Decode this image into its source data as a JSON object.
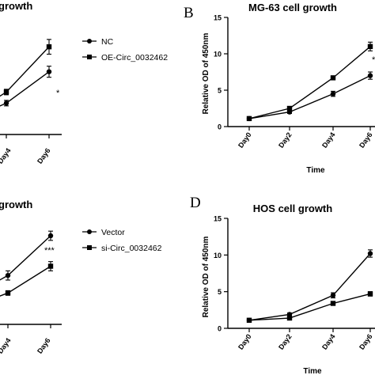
{
  "chart_data": [
    {
      "id": "A",
      "type": "line",
      "title": "growth",
      "panel_letter": "",
      "xlabel": "",
      "ylabel": "",
      "categories": [
        "Day4",
        "Day6"
      ],
      "series": [
        {
          "name": "NC",
          "marker": "circle",
          "values": [
            3.4,
            6.8
          ],
          "err": [
            0.3,
            0.6
          ]
        },
        {
          "name": "OE-Circ_0032462",
          "marker": "square",
          "values": [
            4.6,
            9.5
          ],
          "err": [
            0.3,
            0.8
          ]
        }
      ],
      "significance": [
        "",
        "*"
      ],
      "ylim": [
        0,
        12
      ],
      "legend": "right"
    },
    {
      "id": "B",
      "type": "line",
      "title": "MG-63 cell growth",
      "panel_letter": "B",
      "xlabel": "Time",
      "ylabel": "Relative OD of 450nm",
      "categories": [
        "Day0",
        "Day2",
        "Day4",
        "Day6"
      ],
      "yticks": [
        0,
        5,
        10,
        15
      ],
      "series": [
        {
          "name": "",
          "marker": "square",
          "values": [
            1.1,
            2.5,
            6.7,
            11.0
          ],
          "err": [
            0.15,
            0.2,
            0.25,
            0.6
          ]
        },
        {
          "name": "",
          "marker": "circle",
          "values": [
            1.1,
            2.0,
            4.5,
            7.0
          ],
          "err": [
            0.15,
            0.2,
            0.35,
            0.5
          ]
        }
      ],
      "significance": [
        "",
        "",
        "",
        "*"
      ],
      "ylim": [
        0,
        15
      ]
    },
    {
      "id": "C",
      "type": "line",
      "title": "growth",
      "panel_letter": "",
      "xlabel": "",
      "ylabel": "",
      "categories": [
        "Day4",
        "Day6"
      ],
      "series": [
        {
          "name": "Vector",
          "marker": "circle",
          "values": [
            5.3,
            9.6
          ],
          "err": [
            0.5,
            0.5
          ]
        },
        {
          "name": "si-Circ_0032462",
          "marker": "square",
          "values": [
            3.4,
            6.3
          ],
          "err": [
            0.25,
            0.5
          ]
        }
      ],
      "significance": [
        "",
        "***"
      ],
      "ylim": [
        0,
        12
      ],
      "legend": "right"
    },
    {
      "id": "D",
      "type": "line",
      "title": "HOS cell growth",
      "panel_letter": "D",
      "xlabel": "Time",
      "ylabel": "Relative OD of 450nm",
      "categories": [
        "Day0",
        "Day2",
        "Day4",
        "Day6"
      ],
      "yticks": [
        0,
        5,
        10,
        15
      ],
      "series": [
        {
          "name": "",
          "marker": "circle",
          "values": [
            1.1,
            1.9,
            4.5,
            10.2
          ],
          "err": [
            0.15,
            0.2,
            0.35,
            0.5
          ]
        },
        {
          "name": "",
          "marker": "square",
          "values": [
            1.1,
            1.4,
            3.4,
            4.7
          ],
          "err": [
            0.15,
            0.2,
            0.25,
            0.3
          ]
        }
      ],
      "significance": [
        "",
        "",
        "",
        ""
      ],
      "ylim": [
        0,
        15
      ]
    }
  ]
}
